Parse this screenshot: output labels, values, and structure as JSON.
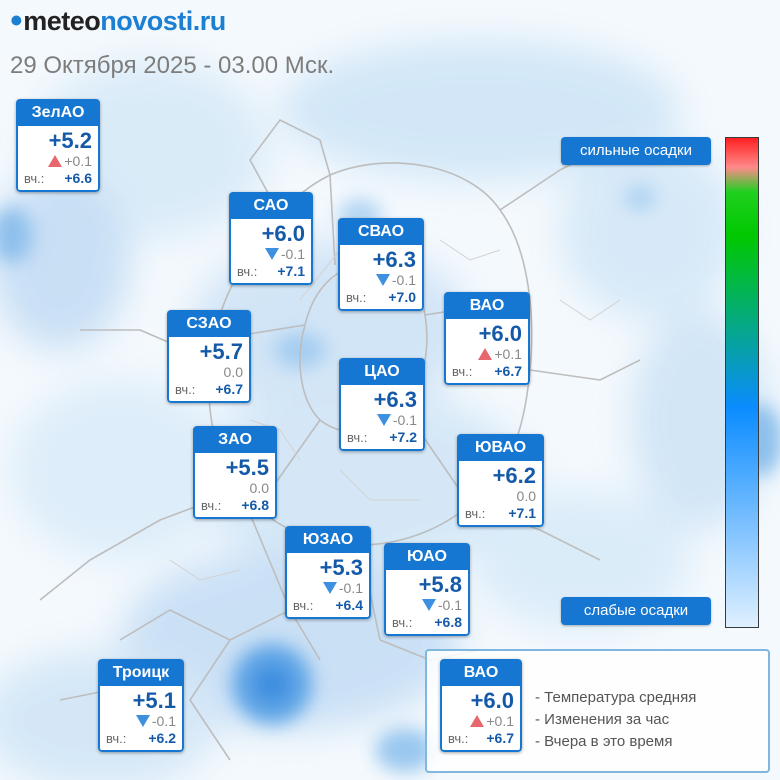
{
  "header": {
    "logo_mark": "ꔷ",
    "logo_meteo": "meteo",
    "logo_novosti": "novosti",
    "logo_ru": ".ru",
    "timestamp": "29 Октября 2025 - 03.00 Мск."
  },
  "colors": {
    "accent": "#1677d2",
    "up": "#e8666e",
    "down": "#3d8fe0"
  },
  "districts": [
    {
      "name": "ЗелАО",
      "temp": "+5.2",
      "trend": "up",
      "change": "+0.1",
      "yday_label": "вч.:",
      "yday": "+6.6"
    },
    {
      "name": "САО",
      "temp": "+6.0",
      "trend": "down",
      "change": "-0.1",
      "yday_label": "вч.:",
      "yday": "+7.1"
    },
    {
      "name": "СВАО",
      "temp": "+6.3",
      "trend": "down",
      "change": "-0.1",
      "yday_label": "вч.:",
      "yday": "+7.0"
    },
    {
      "name": "СЗАО",
      "temp": "+5.7",
      "trend": "none",
      "change": "0.0",
      "yday_label": "вч.:",
      "yday": "+6.7"
    },
    {
      "name": "ВАО",
      "temp": "+6.0",
      "trend": "up",
      "change": "+0.1",
      "yday_label": "вч.:",
      "yday": "+6.7"
    },
    {
      "name": "ЦАО",
      "temp": "+6.3",
      "trend": "down",
      "change": "-0.1",
      "yday_label": "вч.:",
      "yday": "+7.2"
    },
    {
      "name": "ЗАО",
      "temp": "+5.5",
      "trend": "none",
      "change": "0.0",
      "yday_label": "вч.:",
      "yday": "+6.8"
    },
    {
      "name": "ЮВАО",
      "temp": "+6.2",
      "trend": "none",
      "change": "0.0",
      "yday_label": "вч.:",
      "yday": "+7.1"
    },
    {
      "name": "ЮЗАО",
      "temp": "+5.3",
      "trend": "down",
      "change": "-0.1",
      "yday_label": "вч.:",
      "yday": "+6.4"
    },
    {
      "name": "ЮАО",
      "temp": "+5.8",
      "trend": "down",
      "change": "-0.1",
      "yday_label": "вч.:",
      "yday": "+6.8"
    },
    {
      "name": "Троицк",
      "temp": "+5.1",
      "trend": "down",
      "change": "-0.1",
      "yday_label": "вч.:",
      "yday": "+6.2"
    }
  ],
  "legend": {
    "example": {
      "name": "ВАО",
      "temp": "+6.0",
      "trend": "up",
      "change": "+0.1",
      "yday_label": "вч.:",
      "yday": "+6.7"
    },
    "line_temp": "- Температура средняя",
    "line_change": "- Изменения за час",
    "line_yday": "- Вчера в это время"
  },
  "scale": {
    "high_label": "сильные осадки",
    "low_label": "слабые осадки"
  }
}
